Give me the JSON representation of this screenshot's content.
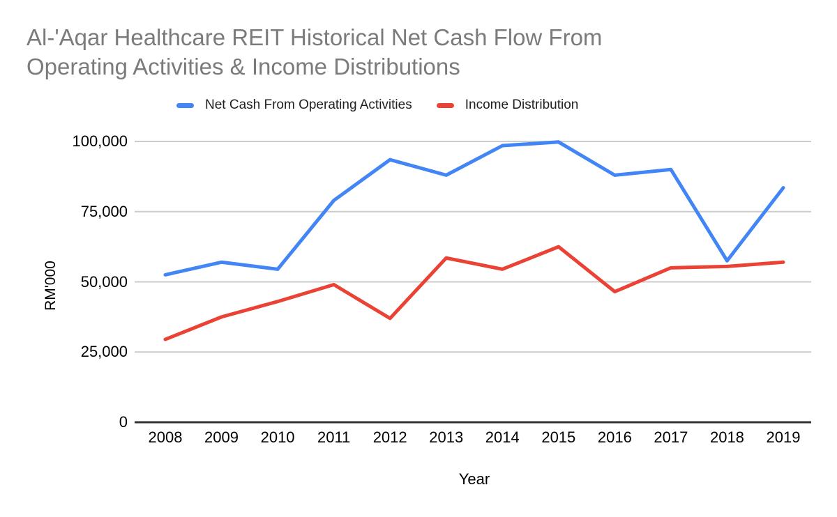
{
  "title": {
    "line1": "Al-'Aqar Healthcare REIT Historical Net Cash Flow From",
    "line2": "Operating Activities & Income Distributions"
  },
  "colors": {
    "background": "#ffffff",
    "title_text": "#7b7b7b",
    "axis_text": "#000000",
    "gridline": "#cccccc",
    "baseline": "#333333",
    "series_blue": "#4285F4",
    "series_red": "#EA4335"
  },
  "chart_data": {
    "type": "line",
    "title": "Al-'Aqar Healthcare REIT Historical Net Cash Flow From Operating Activities & Income Distributions",
    "xlabel": "Year",
    "ylabel": "RM'000",
    "categories": [
      "2008",
      "2009",
      "2010",
      "2011",
      "2012",
      "2013",
      "2014",
      "2015",
      "2016",
      "2017",
      "2018",
      "2019"
    ],
    "series": [
      {
        "name": "Net Cash From Operating Activities",
        "color": "#4285F4",
        "values": [
          52500,
          57000,
          54500,
          79000,
          93500,
          88000,
          98500,
          99800,
          88000,
          90000,
          57500,
          83500
        ]
      },
      {
        "name": "Income Distribution",
        "color": "#EA4335",
        "values": [
          29500,
          37500,
          43000,
          49000,
          37000,
          58500,
          54500,
          62500,
          46500,
          55000,
          55500,
          57000
        ]
      }
    ],
    "ylim": [
      0,
      100000
    ],
    "y_ticks": [
      0,
      25000,
      50000,
      75000,
      100000
    ],
    "y_tick_labels": [
      "0",
      "25,000",
      "50,000",
      "75,000",
      "100,000"
    ],
    "grid": "horizontal-only",
    "legend_position": "top"
  }
}
